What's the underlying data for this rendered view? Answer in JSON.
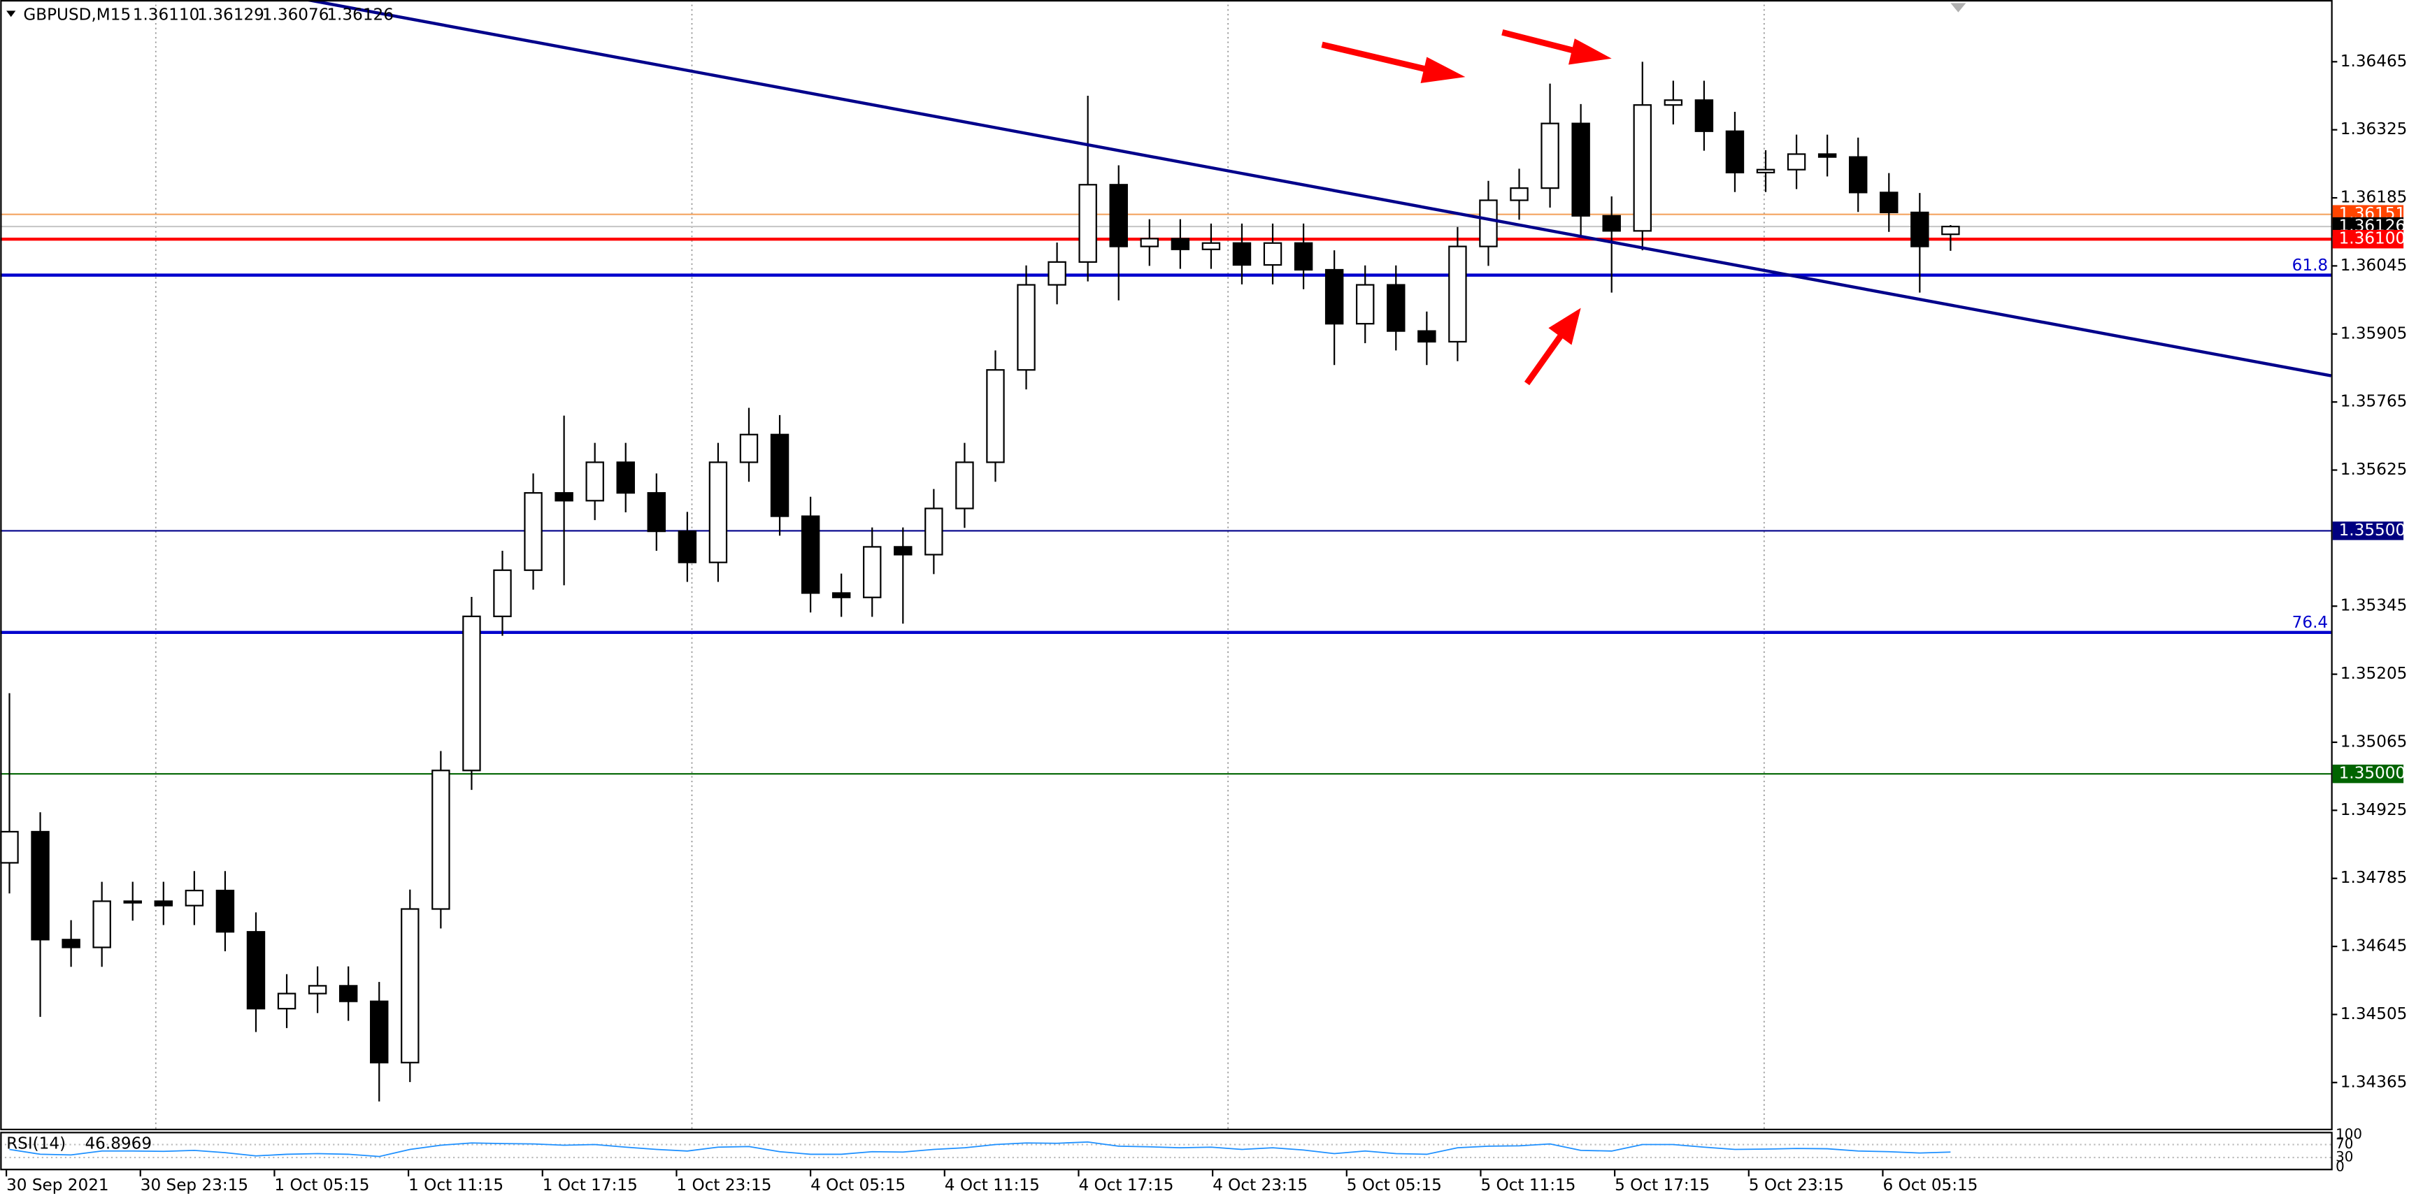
{
  "chart_data": {
    "type": "candlestick",
    "title": "GBPUSD,M15",
    "ohlc_labels": [
      "1.36110",
      "1.36129",
      "1.36076",
      "1.36126"
    ],
    "open": [
      1.34817,
      1.34881,
      1.34659,
      1.34643,
      1.34738,
      1.34738,
      1.34729,
      1.3476,
      1.34675,
      1.34517,
      1.34548,
      1.34564,
      1.34532,
      1.34406,
      1.34722,
      1.35007,
      1.35324,
      1.35419,
      1.35578,
      1.35562,
      1.35641,
      1.35578,
      1.35499,
      1.35435,
      1.35641,
      1.35698,
      1.3553,
      1.35372,
      1.35363,
      1.35467,
      1.35451,
      1.35546,
      1.35641,
      1.35831,
      1.36006,
      1.36053,
      1.36212,
      1.36085,
      1.36101,
      1.36079,
      1.36092,
      1.36047,
      1.36092,
      1.36037,
      1.35926,
      1.36006,
      1.35911,
      1.35889,
      1.36085,
      1.3618,
      1.36205,
      1.36338,
      1.36148,
      1.36117,
      1.36376,
      1.36386,
      1.36322,
      1.36237,
      1.36243,
      1.36275,
      1.36269,
      1.36196,
      1.36155,
      1.3611
    ],
    "high": [
      1.35166,
      1.34921,
      1.34699,
      1.34778,
      1.34778,
      1.34778,
      1.348,
      1.348,
      1.34715,
      1.34588,
      1.34604,
      1.34604,
      1.34572,
      1.34762,
      1.35047,
      1.35364,
      1.35459,
      1.35618,
      1.35737,
      1.35681,
      1.35681,
      1.35618,
      1.35539,
      1.35681,
      1.35753,
      1.35738,
      1.3557,
      1.35412,
      1.35507,
      1.35507,
      1.35586,
      1.35681,
      1.35871,
      1.36046,
      1.36093,
      1.36395,
      1.36252,
      1.36141,
      1.36141,
      1.36132,
      1.36132,
      1.36132,
      1.36132,
      1.36077,
      1.36046,
      1.36046,
      1.35951,
      1.36125,
      1.3622,
      1.36245,
      1.3642,
      1.36378,
      1.36188,
      1.36465,
      1.36426,
      1.36426,
      1.36362,
      1.36283,
      1.36315,
      1.36315,
      1.36309,
      1.36236,
      1.36195,
      1.36129
    ],
    "low": [
      1.34754,
      1.345,
      1.34603,
      1.34603,
      1.34698,
      1.34689,
      1.34689,
      1.34635,
      1.34469,
      1.34477,
      1.34508,
      1.34492,
      1.34326,
      1.34366,
      1.34682,
      1.34967,
      1.35284,
      1.35379,
      1.35388,
      1.35522,
      1.35538,
      1.35459,
      1.35395,
      1.35395,
      1.35601,
      1.3549,
      1.35332,
      1.35323,
      1.35323,
      1.35309,
      1.35411,
      1.35506,
      1.35601,
      1.35791,
      1.35966,
      1.36013,
      1.35974,
      1.36045,
      1.36039,
      1.36039,
      1.36007,
      1.36007,
      1.35997,
      1.35841,
      1.35886,
      1.35871,
      1.35841,
      1.35849,
      1.36045,
      1.3614,
      1.36165,
      1.36108,
      1.3599,
      1.36077,
      1.36336,
      1.36282,
      1.36197,
      1.36197,
      1.36203,
      1.36229,
      1.36156,
      1.36115,
      1.3599,
      1.36076
    ],
    "close": [
      1.34881,
      1.34659,
      1.34643,
      1.34738,
      1.34738,
      1.34729,
      1.3476,
      1.34675,
      1.34517,
      1.34548,
      1.34564,
      1.34532,
      1.34406,
      1.34722,
      1.35007,
      1.35324,
      1.35419,
      1.35578,
      1.35562,
      1.35641,
      1.35578,
      1.35499,
      1.35435,
      1.35641,
      1.35698,
      1.3553,
      1.35372,
      1.35363,
      1.35467,
      1.35451,
      1.35546,
      1.35641,
      1.35831,
      1.36006,
      1.36053,
      1.36212,
      1.36085,
      1.36101,
      1.36079,
      1.36092,
      1.36047,
      1.36092,
      1.36037,
      1.35926,
      1.36006,
      1.35911,
      1.35889,
      1.36085,
      1.3618,
      1.36205,
      1.36338,
      1.36148,
      1.36117,
      1.36376,
      1.36386,
      1.36322,
      1.36237,
      1.36243,
      1.36275,
      1.36269,
      1.36196,
      1.36155,
      1.36085,
      1.36126
    ],
    "xlim": [
      -0.3,
      75.35
    ],
    "xticks": [
      {
        "value": -0.1,
        "label": "30 Sep 2021"
      },
      {
        "value": 4.25,
        "label": "30 Sep 23:15"
      },
      {
        "value": 8.6,
        "label": "1 Oct 05:15"
      },
      {
        "value": 12.95,
        "label": "1 Oct 11:15"
      },
      {
        "value": 17.3,
        "label": "1 Oct 17:15"
      },
      {
        "value": 21.65,
        "label": "1 Oct 23:15"
      },
      {
        "value": 26.0,
        "label": "4 Oct 05:15"
      },
      {
        "value": 30.35,
        "label": "4 Oct 11:15"
      },
      {
        "value": 34.7,
        "label": "4 Oct 17:15"
      },
      {
        "value": 39.05,
        "label": "4 Oct 23:15"
      },
      {
        "value": 43.4,
        "label": "5 Oct 05:15"
      },
      {
        "value": 47.75,
        "label": "5 Oct 11:15"
      },
      {
        "value": 52.1,
        "label": "5 Oct 17:15"
      },
      {
        "value": 56.45,
        "label": "5 Oct 23:15"
      },
      {
        "value": 60.8,
        "label": "6 Oct 05:15"
      }
    ],
    "ylim": [
      1.3427,
      1.36592
    ],
    "yticks": [
      1.36465,
      1.36325,
      1.36185,
      1.36045,
      1.35905,
      1.35765,
      1.35625,
      1.35345,
      1.35205,
      1.35065,
      1.34925,
      1.34785,
      1.34645,
      1.34505,
      1.34365
    ],
    "levels": [
      {
        "value": 1.36151,
        "color": "#f4a460",
        "width": 1,
        "tag_color": "#ff4500"
      },
      {
        "value": 1.36126,
        "color": "#c8c8c8",
        "width": 1,
        "tag_color": "#000000"
      },
      {
        "value": 1.361,
        "label": "1.36100",
        "color": "#ff0000",
        "width": 2,
        "tag_color": "#ff0000"
      },
      {
        "value": 1.36026,
        "label": "61.8",
        "color": "#0000cd",
        "width": 2
      },
      {
        "value": 1.355,
        "label": "1.35500",
        "color": "#00008b",
        "width": 1,
        "tag_color": "#000080"
      },
      {
        "value": 1.35291,
        "label": "76.4",
        "color": "#0000cd",
        "width": 2
      },
      {
        "value": 1.35,
        "label": "1.35000",
        "color": "#006400",
        "width": 1,
        "tag_color": "#006400"
      }
    ],
    "trendline": {
      "x": [
        9.7,
        75.35
      ],
      "y": [
        1.36592,
        1.35819
      ],
      "color": "#00008b"
    },
    "bull_color": "#ffffff",
    "bear_color": "#000000",
    "rsi": {
      "name": "RSI(14)",
      "color": "#1e90ff",
      "ylim": [
        0,
        100
      ],
      "yticks": [
        100,
        70,
        30,
        0
      ],
      "values": [
        55,
        40,
        38,
        50,
        50,
        49,
        52,
        45,
        35,
        40,
        42,
        40,
        33,
        55,
        68,
        75,
        73,
        72,
        68,
        70,
        62,
        55,
        50,
        62,
        64,
        48,
        40,
        40,
        48,
        47,
        55,
        60,
        70,
        75,
        74,
        78,
        65,
        63,
        60,
        62,
        55,
        60,
        53,
        42,
        50,
        42,
        40,
        60,
        65,
        66,
        72,
        52,
        50,
        70,
        70,
        62,
        55,
        56,
        58,
        57,
        50,
        48,
        44,
        46.8969
      ]
    }
  }
}
